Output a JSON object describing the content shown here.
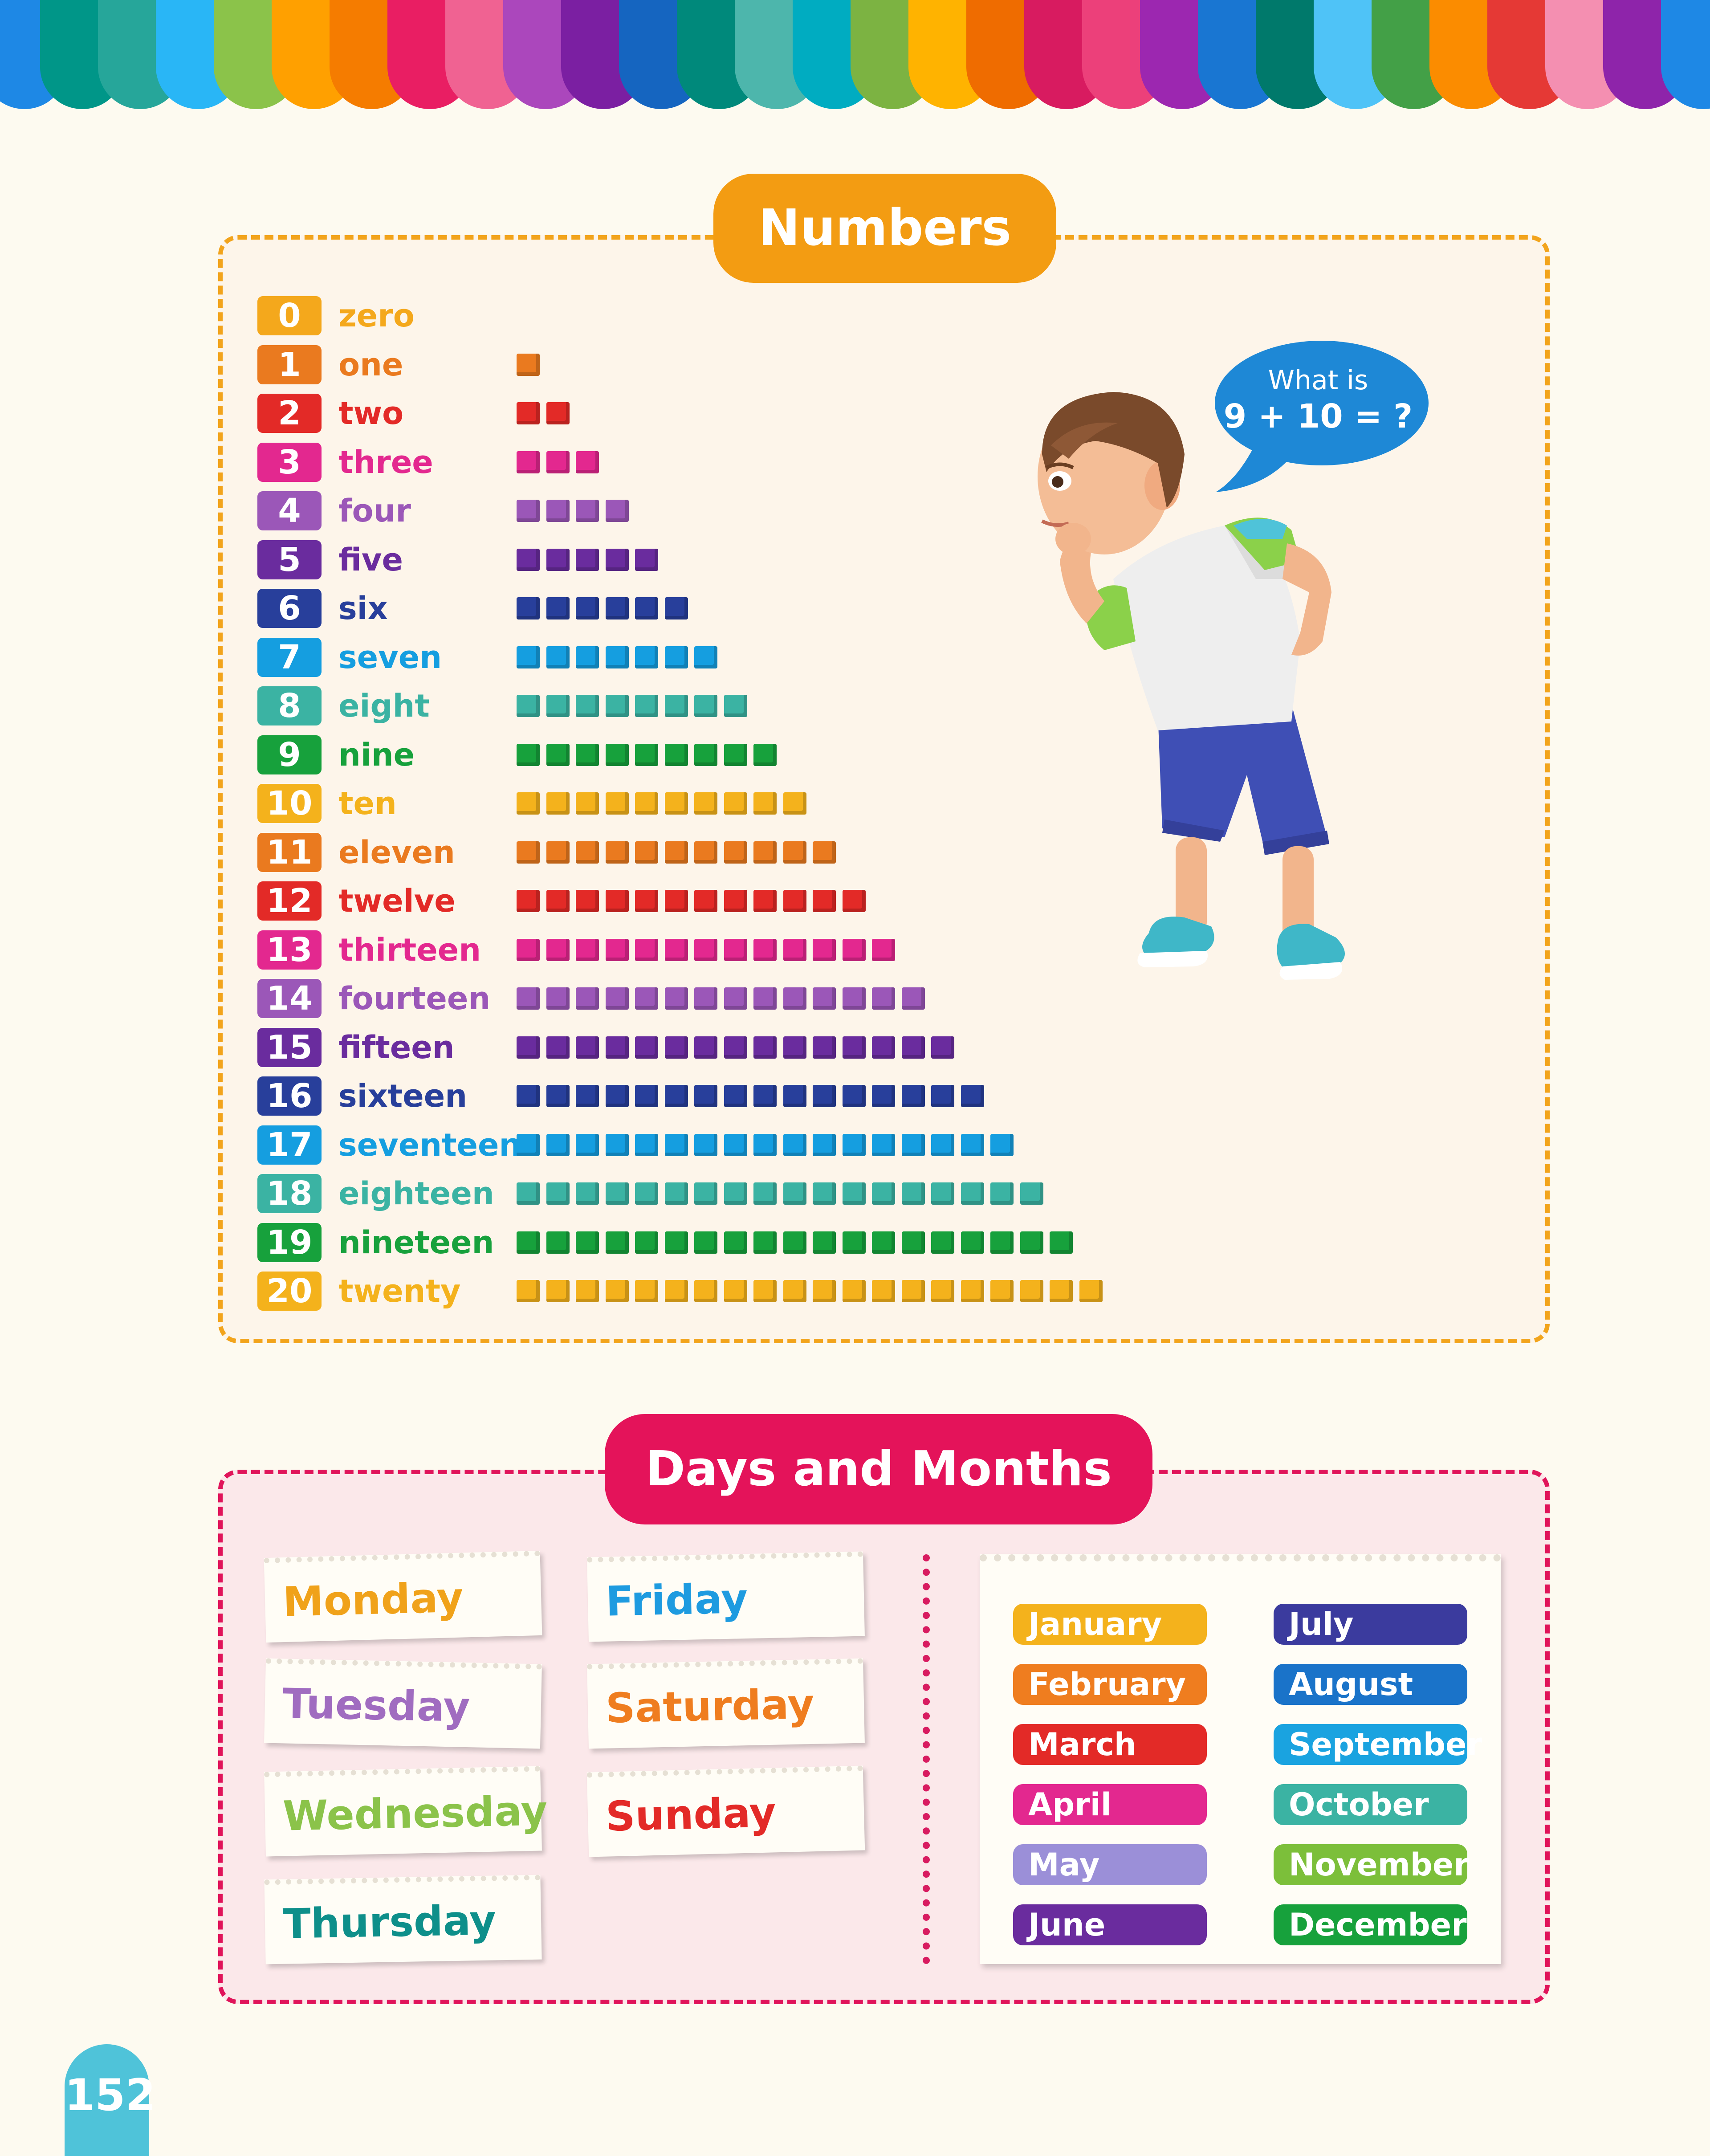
{
  "colors": {
    "orange": "#f39c12",
    "pink_red": "#e4135a",
    "bubble": "#1e88d6",
    "page_tab": "#4fc3d9"
  },
  "border_palette": [
    "#1e88e5",
    "#009688",
    "#26a69a",
    "#29b6f6",
    "#8bc34a",
    "#ffa000",
    "#f57c00",
    "#e91e63",
    "#f06292",
    "#ab47bc",
    "#7b1fa2",
    "#1565c0",
    "#00897b",
    "#4db6ac",
    "#00acc1",
    "#7cb342",
    "#ffb300",
    "#ef6c00",
    "#d81b60",
    "#ec407a",
    "#9c27b0",
    "#1976d2",
    "#00796b",
    "#4fc3f7",
    "#43a047",
    "#fb8c00",
    "#e53935",
    "#f48fb1",
    "#8e24aa"
  ],
  "numbers": {
    "title": "Numbers",
    "items": [
      {
        "digit": "0",
        "word": "zero",
        "color": "#f4a81c"
      },
      {
        "digit": "1",
        "word": "one",
        "color": "#ea7a1f"
      },
      {
        "digit": "2",
        "word": "two",
        "color": "#e32a27"
      },
      {
        "digit": "3",
        "word": "three",
        "color": "#e3288f"
      },
      {
        "digit": "4",
        "word": "four",
        "color": "#9b57b8"
      },
      {
        "digit": "5",
        "word": "five",
        "color": "#6a2c9e"
      },
      {
        "digit": "6",
        "word": "six",
        "color": "#283f9b"
      },
      {
        "digit": "7",
        "word": "seven",
        "color": "#159ee0"
      },
      {
        "digit": "8",
        "word": "eight",
        "color": "#3bb3a3"
      },
      {
        "digit": "9",
        "word": "nine",
        "color": "#17a13c"
      },
      {
        "digit": "10",
        "word": "ten",
        "color": "#f4b21c"
      },
      {
        "digit": "11",
        "word": "eleven",
        "color": "#ea7a1f"
      },
      {
        "digit": "12",
        "word": "twelve",
        "color": "#e32a27"
      },
      {
        "digit": "13",
        "word": "thirteen",
        "color": "#e3288f"
      },
      {
        "digit": "14",
        "word": "fourteen",
        "color": "#9b57b8"
      },
      {
        "digit": "15",
        "word": "fifteen",
        "color": "#6a2c9e"
      },
      {
        "digit": "16",
        "word": "sixteen",
        "color": "#283f9b"
      },
      {
        "digit": "17",
        "word": "seventeen",
        "color": "#159ee0"
      },
      {
        "digit": "18",
        "word": "eighteen",
        "color": "#3bb3a3"
      },
      {
        "digit": "19",
        "word": "nineteen",
        "color": "#17a13c"
      },
      {
        "digit": "20",
        "word": "twenty",
        "color": "#f4b21c"
      }
    ]
  },
  "speech_bubble": {
    "line1": "What is",
    "line2": "9 + 10 = ?"
  },
  "days_months": {
    "title": "Days and Months",
    "days": [
      {
        "label": "Monday",
        "color": "#f0a21a"
      },
      {
        "label": "Tuesday",
        "color": "#a06cc0"
      },
      {
        "label": "Wednesday",
        "color": "#8bc34a"
      },
      {
        "label": "Thursday",
        "color": "#0e8f8a"
      },
      {
        "label": "Friday",
        "color": "#1e9be0"
      },
      {
        "label": "Saturday",
        "color": "#ef7d1f"
      },
      {
        "label": "Sunday",
        "color": "#e32a27"
      }
    ],
    "months_left": [
      {
        "label": "January",
        "color": "#f4b21c"
      },
      {
        "label": "February",
        "color": "#ef7d1f"
      },
      {
        "label": "March",
        "color": "#e32a27"
      },
      {
        "label": "April",
        "color": "#e3288f"
      },
      {
        "label": "May",
        "color": "#9b8fd8"
      },
      {
        "label": "June",
        "color": "#6a2c9e"
      }
    ],
    "months_right": [
      {
        "label": "July",
        "color": "#3b3b9e"
      },
      {
        "label": "August",
        "color": "#1a73c9"
      },
      {
        "label": "September",
        "color": "#1aa3e0"
      },
      {
        "label": "October",
        "color": "#3bb3a3"
      },
      {
        "label": "November",
        "color": "#7cbf3a"
      },
      {
        "label": "December",
        "color": "#17a13c"
      }
    ]
  },
  "page_number": "152"
}
